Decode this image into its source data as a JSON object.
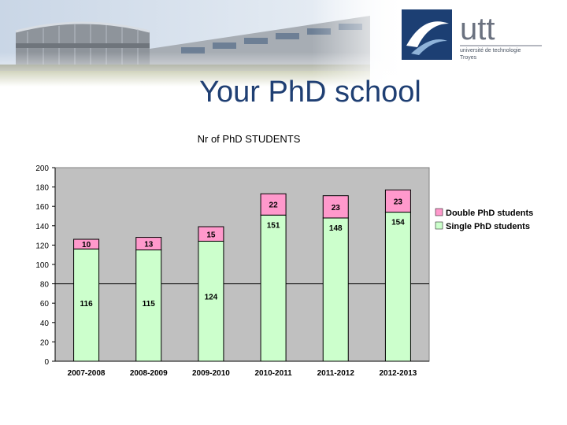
{
  "slide": {
    "title": "Your PhD school"
  },
  "logo": {
    "brand": "utt",
    "line1": "université de technologie",
    "line2": "Troyes"
  },
  "colors": {
    "title": "#1f3f73",
    "single": "#ccffcc",
    "double": "#ff99cc",
    "plot_bg": "#c0c0c0",
    "logo_blue": "#1c3f73"
  },
  "chart_data": {
    "type": "bar",
    "stacked": true,
    "title": "Nr of PhD STUDENTS",
    "categories": [
      "2007-2008",
      "2008-2009",
      "2009-2010",
      "2010-2011",
      "2011-2012",
      "2012-2013"
    ],
    "series": [
      {
        "name": "Single PhD students",
        "values": [
          116,
          115,
          124,
          151,
          148,
          154
        ],
        "color": "#ccffcc"
      },
      {
        "name": "Double PhD students",
        "values": [
          10,
          13,
          15,
          22,
          23,
          23
        ],
        "color": "#ff99cc"
      }
    ],
    "ylim": [
      0,
      200
    ],
    "yticks": [
      "0",
      "20",
      "40",
      "60",
      "80",
      "100",
      "120",
      "140",
      "160",
      "180",
      "200"
    ],
    "grid": "y = 80 line only",
    "legend": "right"
  }
}
